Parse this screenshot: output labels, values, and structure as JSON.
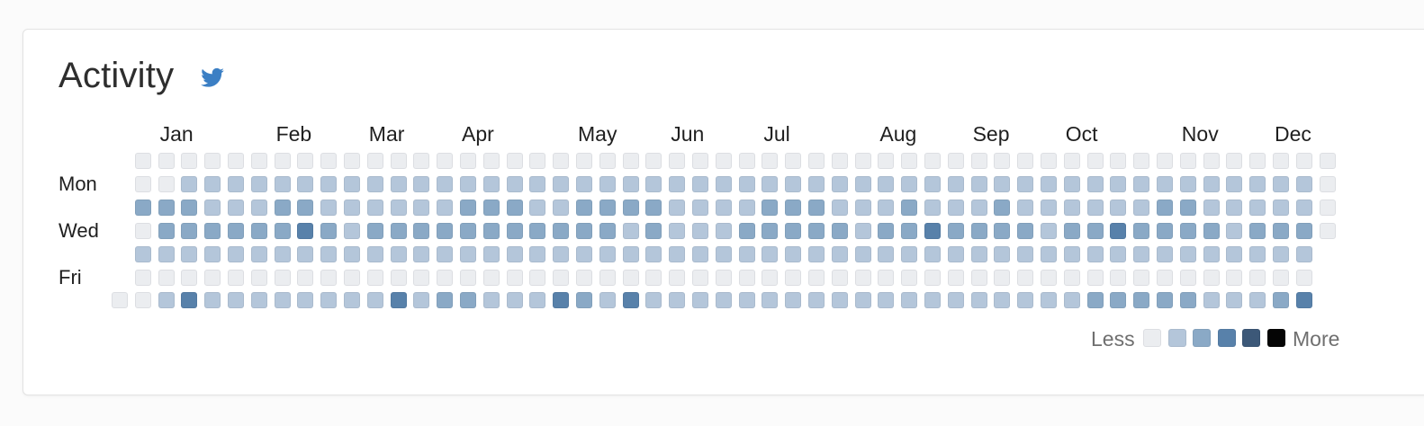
{
  "card": {
    "title": "Activity",
    "share_icon": "twitter-icon"
  },
  "months": [
    "Jan",
    "Feb",
    "Mar",
    "Apr",
    "May",
    "Jun",
    "Jul",
    "Aug",
    "Sep",
    "Oct",
    "Nov",
    "Dec"
  ],
  "month_start_week": [
    2,
    7,
    11,
    15,
    20,
    24,
    28,
    33,
    37,
    41,
    46,
    50
  ],
  "day_labels": [
    {
      "label": "Mon",
      "row": 1
    },
    {
      "label": "Wed",
      "row": 3
    },
    {
      "label": "Fri",
      "row": 5
    }
  ],
  "legend": {
    "less": "Less",
    "more": "More"
  },
  "level_colors": [
    "#ebedf0",
    "#b4c6da",
    "#8aa9c6",
    "#5881aa",
    "#3c5878",
    "#050505"
  ],
  "activity_levels": [
    [
      0,
      0,
      0,
      0,
      0,
      0,
      0,
      0,
      0,
      0,
      0,
      0,
      0,
      0,
      0,
      0,
      0,
      0,
      0,
      0,
      0,
      0,
      0,
      0,
      0,
      0,
      0,
      0,
      0,
      0,
      0,
      0,
      0,
      0,
      0,
      0,
      0,
      0,
      0,
      0,
      0,
      0,
      0,
      0,
      0,
      0,
      0,
      0,
      0,
      0,
      0,
      0,
      0
    ],
    [
      0,
      0,
      0,
      1,
      1,
      1,
      1,
      1,
      1,
      1,
      1,
      1,
      1,
      1,
      1,
      1,
      1,
      1,
      1,
      1,
      1,
      1,
      1,
      1,
      1,
      1,
      1,
      1,
      1,
      1,
      1,
      1,
      1,
      1,
      1,
      1,
      1,
      1,
      1,
      1,
      1,
      1,
      1,
      1,
      1,
      1,
      1,
      1,
      1,
      1,
      1,
      1,
      0
    ],
    [
      0,
      2,
      2,
      2,
      1,
      1,
      1,
      2,
      2,
      1,
      1,
      1,
      1,
      1,
      1,
      2,
      2,
      2,
      1,
      1,
      2,
      2,
      2,
      2,
      1,
      1,
      1,
      1,
      2,
      2,
      2,
      1,
      1,
      1,
      2,
      1,
      1,
      1,
      2,
      1,
      1,
      1,
      1,
      1,
      1,
      2,
      2,
      1,
      1,
      1,
      1,
      1,
      0
    ],
    [
      0,
      0,
      2,
      2,
      2,
      2,
      2,
      2,
      3,
      2,
      1,
      2,
      2,
      2,
      2,
      2,
      2,
      2,
      2,
      2,
      2,
      2,
      1,
      2,
      1,
      1,
      1,
      2,
      2,
      2,
      2,
      2,
      1,
      2,
      2,
      3,
      2,
      2,
      2,
      2,
      1,
      2,
      2,
      3,
      2,
      2,
      2,
      2,
      1,
      2,
      2,
      2,
      0
    ],
    [
      0,
      1,
      1,
      1,
      1,
      1,
      1,
      1,
      1,
      1,
      1,
      1,
      1,
      1,
      1,
      1,
      1,
      1,
      1,
      1,
      1,
      1,
      1,
      1,
      1,
      1,
      1,
      1,
      1,
      1,
      1,
      1,
      1,
      1,
      1,
      1,
      1,
      1,
      1,
      1,
      1,
      1,
      1,
      1,
      1,
      1,
      1,
      1,
      1,
      1,
      1,
      1,
      0
    ],
    [
      0,
      0,
      0,
      0,
      0,
      0,
      0,
      0,
      0,
      0,
      0,
      0,
      0,
      0,
      0,
      0,
      0,
      0,
      0,
      0,
      0,
      0,
      0,
      0,
      0,
      0,
      0,
      0,
      0,
      0,
      0,
      0,
      0,
      0,
      0,
      0,
      0,
      0,
      0,
      0,
      0,
      0,
      0,
      0,
      0,
      0,
      0,
      0,
      0,
      0,
      0,
      0,
      0
    ],
    [
      0,
      0,
      1,
      3,
      1,
      1,
      1,
      1,
      1,
      1,
      1,
      1,
      3,
      1,
      2,
      2,
      1,
      1,
      1,
      3,
      2,
      1,
      3,
      1,
      1,
      1,
      1,
      1,
      1,
      1,
      1,
      1,
      1,
      1,
      1,
      1,
      1,
      1,
      1,
      1,
      1,
      1,
      2,
      2,
      2,
      2,
      2,
      1,
      1,
      1,
      2,
      3,
      0
    ]
  ]
}
